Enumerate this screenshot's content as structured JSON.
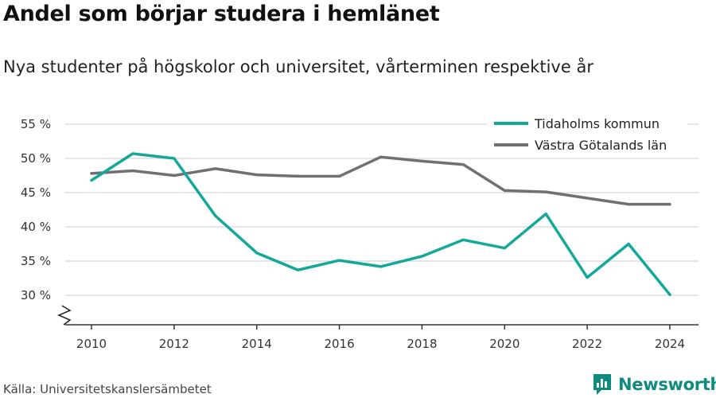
{
  "header": {
    "title": "Andel som börjar studera i hemlänet",
    "subtitle": "Nya studenter på högskolor och universitet, vårterminen respektive år"
  },
  "footer": {
    "source": "Källa: Universitetskanslersämbetet",
    "brand": "Newsworthy",
    "brand_icon": "bar-chart-logo-icon"
  },
  "colors": {
    "tidaholm": "#14a89b",
    "vgr": "#707074",
    "grid": "#dddddd",
    "axis": "#333333",
    "brand": "#0e8a7e"
  },
  "chart_data": {
    "type": "line",
    "x": [
      2010,
      2011,
      2012,
      2013,
      2014,
      2015,
      2016,
      2017,
      2018,
      2019,
      2020,
      2021,
      2022,
      2023,
      2024
    ],
    "series": [
      {
        "name": "Tidaholms kommun",
        "color": "#14a89b",
        "values": [
          46.8,
          50.7,
          50.0,
          41.6,
          36.2,
          33.7,
          35.1,
          34.2,
          35.7,
          38.1,
          36.9,
          41.9,
          32.6,
          37.5,
          30.1
        ]
      },
      {
        "name": "Västra Götalands län",
        "color": "#707074",
        "values": [
          47.8,
          48.2,
          47.5,
          48.5,
          47.6,
          47.4,
          47.4,
          50.2,
          49.6,
          49.1,
          45.3,
          45.1,
          44.2,
          43.3,
          43.3
        ]
      }
    ],
    "y_ticks": [
      "30 %",
      "35 %",
      "40 %",
      "45 %",
      "50 %",
      "55 %"
    ],
    "x_ticks": [
      "2010",
      "2012",
      "2014",
      "2016",
      "2018",
      "2020",
      "2022",
      "2024"
    ],
    "ylim": [
      30,
      55
    ],
    "y_axis_break": true,
    "grid": true,
    "legend_position": "top-right"
  }
}
